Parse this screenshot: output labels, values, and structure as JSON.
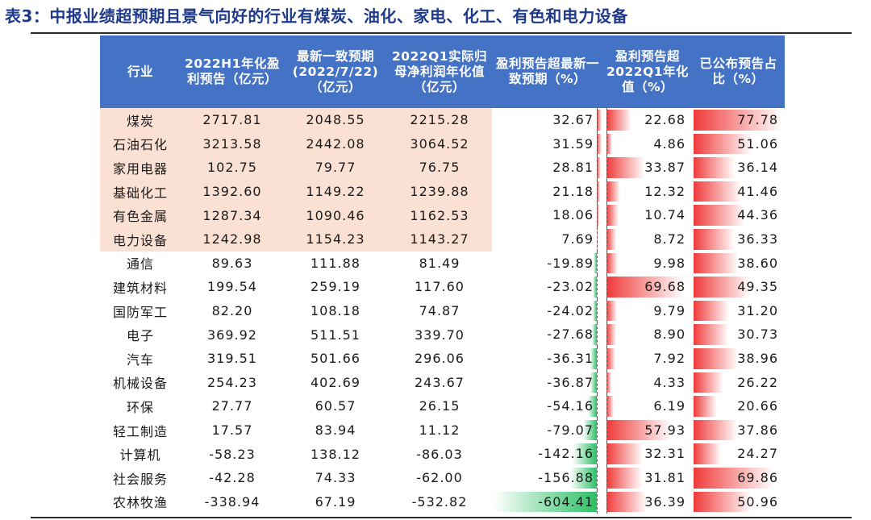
{
  "title": "表3：中报业绩超预期且景气向好的行业有煤炭、油化、家电、化工、有色和电力设备",
  "headers": {
    "industry": "行业",
    "h1": "2022H1年化盈利预告（亿元）",
    "consensus": "最新一致预期(2022/7/22)（亿元）",
    "q1": "2022Q1实际归母净利润年化值（亿元）",
    "beat": "盈利预告超最新一致预期（%）",
    "beat_q1": "盈利预告超2022Q1年化值（%）",
    "share": "已公布预告占比（%）"
  },
  "colors": {
    "header_bg": "#4472c4",
    "highlight_bg": "#fbe1d4",
    "bar_red": "#f03a3a",
    "bar_green": "#2cbf66"
  },
  "rows": [
    {
      "industry": "煤炭",
      "h1": "2717.81",
      "consensus": "2048.55",
      "q1": "2215.28",
      "beat": "32.67",
      "beat_q1": "22.68",
      "share": "77.78",
      "highlight": true
    },
    {
      "industry": "石油石化",
      "h1": "3213.58",
      "consensus": "2442.08",
      "q1": "3064.52",
      "beat": "31.59",
      "beat_q1": "4.86",
      "share": "51.06",
      "highlight": true
    },
    {
      "industry": "家用电器",
      "h1": "102.75",
      "consensus": "79.77",
      "q1": "76.75",
      "beat": "28.81",
      "beat_q1": "33.87",
      "share": "36.14",
      "highlight": true
    },
    {
      "industry": "基础化工",
      "h1": "1392.60",
      "consensus": "1149.22",
      "q1": "1239.88",
      "beat": "21.18",
      "beat_q1": "12.32",
      "share": "41.46",
      "highlight": true
    },
    {
      "industry": "有色金属",
      "h1": "1287.34",
      "consensus": "1090.46",
      "q1": "1162.53",
      "beat": "18.06",
      "beat_q1": "10.74",
      "share": "44.36",
      "highlight": true
    },
    {
      "industry": "电力设备",
      "h1": "1242.98",
      "consensus": "1154.23",
      "q1": "1143.27",
      "beat": "7.69",
      "beat_q1": "8.72",
      "share": "36.33",
      "highlight": true
    },
    {
      "industry": "通信",
      "h1": "89.63",
      "consensus": "111.88",
      "q1": "81.49",
      "beat": "-19.89",
      "beat_q1": "9.98",
      "share": "38.60",
      "highlight": false
    },
    {
      "industry": "建筑材料",
      "h1": "199.54",
      "consensus": "259.19",
      "q1": "117.60",
      "beat": "-23.02",
      "beat_q1": "69.68",
      "share": "49.35",
      "highlight": false
    },
    {
      "industry": "国防军工",
      "h1": "82.20",
      "consensus": "108.18",
      "q1": "74.87",
      "beat": "-24.02",
      "beat_q1": "9.79",
      "share": "31.20",
      "highlight": false
    },
    {
      "industry": "电子",
      "h1": "369.92",
      "consensus": "511.51",
      "q1": "339.70",
      "beat": "-27.68",
      "beat_q1": "8.90",
      "share": "30.73",
      "highlight": false
    },
    {
      "industry": "汽车",
      "h1": "319.51",
      "consensus": "501.66",
      "q1": "296.06",
      "beat": "-36.31",
      "beat_q1": "7.92",
      "share": "38.96",
      "highlight": false
    },
    {
      "industry": "机械设备",
      "h1": "254.23",
      "consensus": "402.69",
      "q1": "243.67",
      "beat": "-36.87",
      "beat_q1": "4.33",
      "share": "26.22",
      "highlight": false
    },
    {
      "industry": "环保",
      "h1": "27.77",
      "consensus": "60.57",
      "q1": "26.15",
      "beat": "-54.16",
      "beat_q1": "6.19",
      "share": "20.66",
      "highlight": false
    },
    {
      "industry": "轻工制造",
      "h1": "17.57",
      "consensus": "83.94",
      "q1": "11.12",
      "beat": "-79.07",
      "beat_q1": "57.93",
      "share": "37.86",
      "highlight": false
    },
    {
      "industry": "计算机",
      "h1": "-58.23",
      "consensus": "138.12",
      "q1": "-86.03",
      "beat": "-142.16",
      "beat_q1": "32.31",
      "share": "24.27",
      "highlight": false
    },
    {
      "industry": "社会服务",
      "h1": "-42.28",
      "consensus": "74.33",
      "q1": "-62.00",
      "beat": "-156.88",
      "beat_q1": "31.81",
      "share": "69.86",
      "highlight": false
    },
    {
      "industry": "农林牧渔",
      "h1": "-338.94",
      "consensus": "67.19",
      "q1": "-532.82",
      "beat": "-604.41",
      "beat_q1": "36.39",
      "share": "50.96",
      "highlight": false
    }
  ]
}
